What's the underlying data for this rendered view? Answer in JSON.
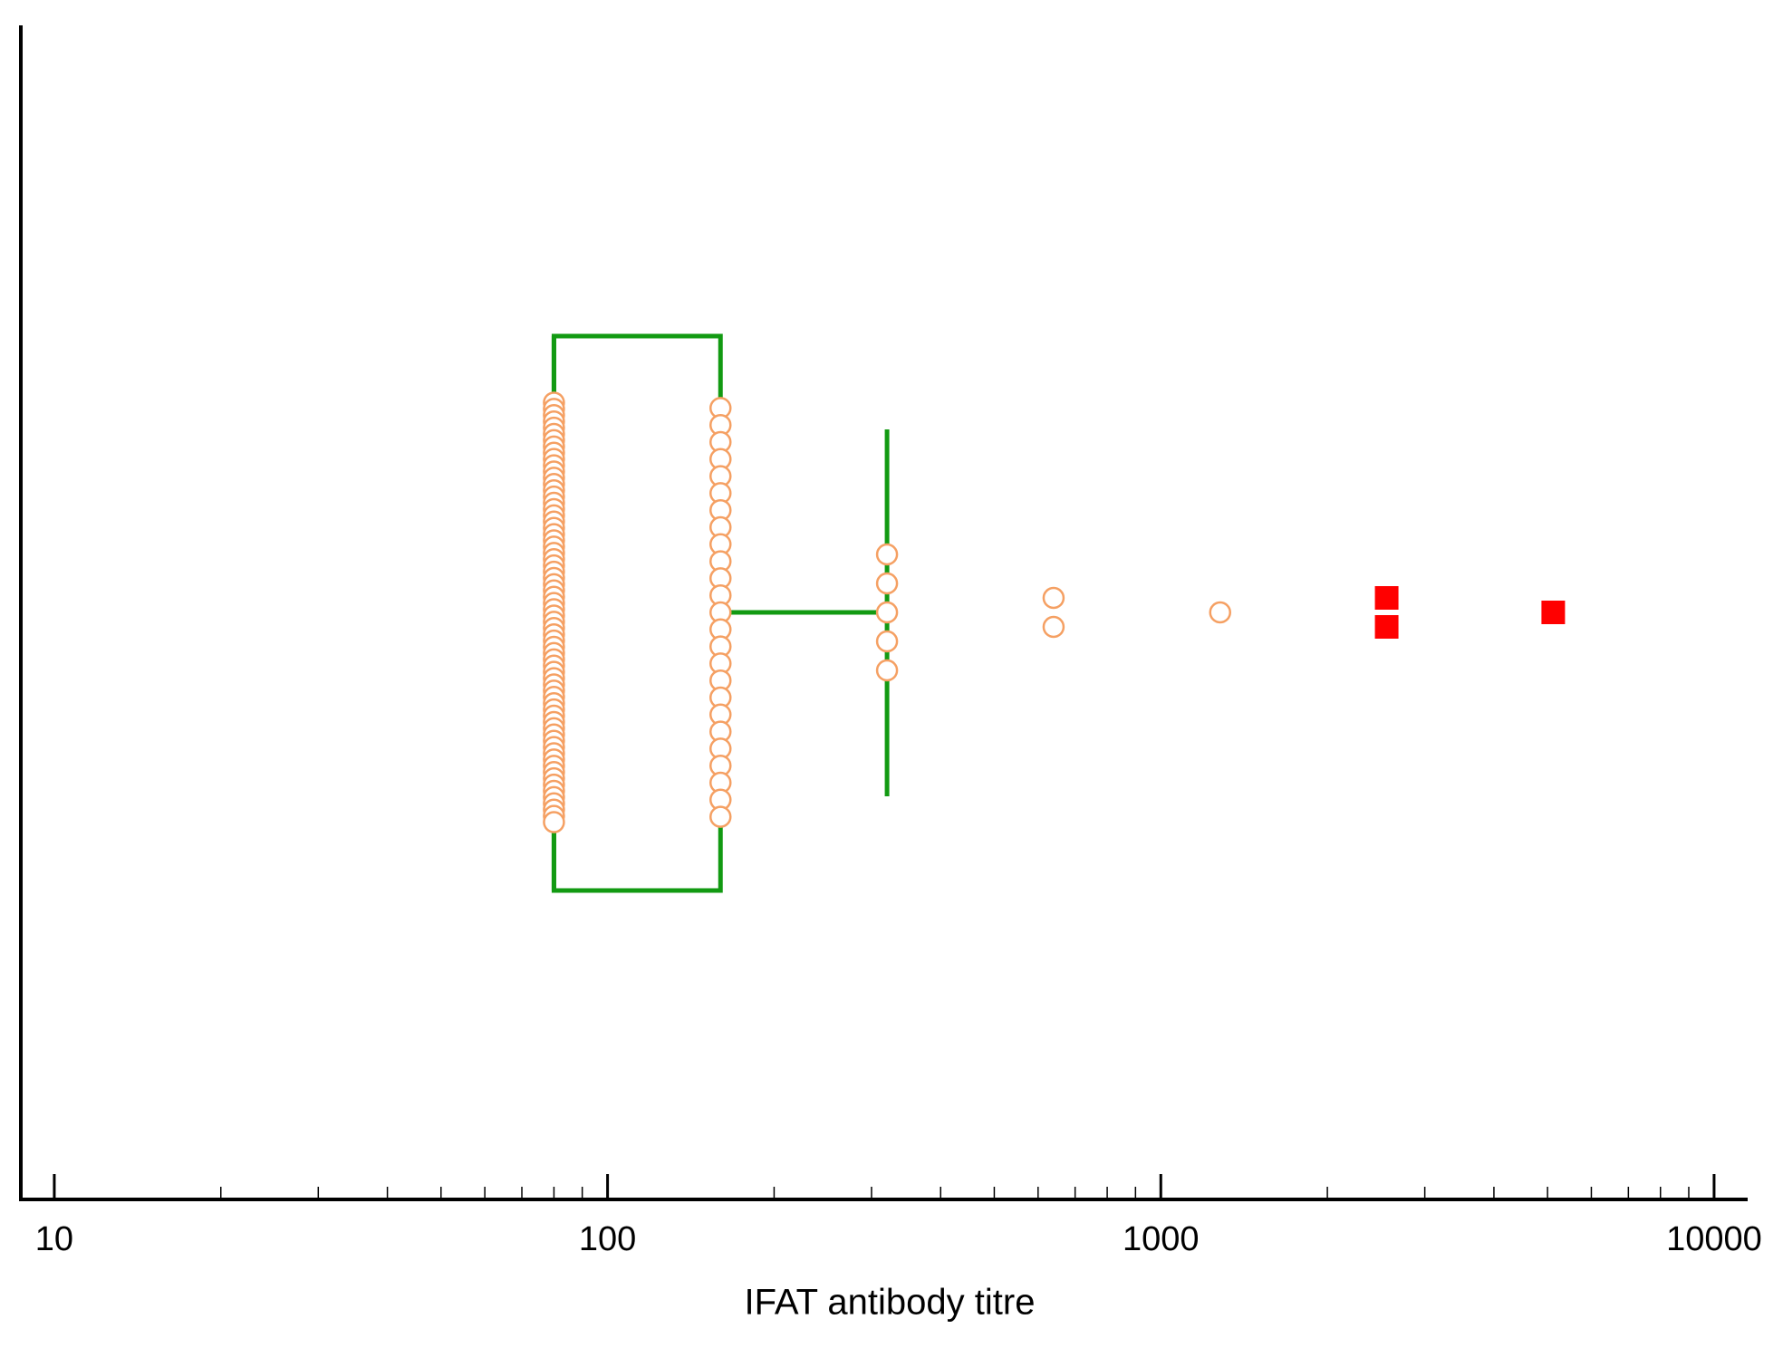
{
  "chart_data": {
    "type": "box",
    "x_label": "IFAT antibody titre",
    "x_scale": "log",
    "xlim": [
      8.7,
      11500
    ],
    "xticks": [
      10,
      100,
      1000,
      10000
    ],
    "xminorticks": [
      20,
      30,
      40,
      50,
      60,
      70,
      80,
      90,
      200,
      300,
      400,
      500,
      600,
      700,
      800,
      900,
      2000,
      3000,
      4000,
      5000,
      6000,
      7000,
      8000,
      9000
    ],
    "box": {
      "whisker_low": 80,
      "q1": 80,
      "median": 80,
      "q3": 160,
      "whisker_high": 320,
      "color": "#129a12"
    },
    "points": [
      {
        "value": 80,
        "count": 68
      },
      {
        "value": 160,
        "count": 25
      },
      {
        "value": 320,
        "count": 5
      },
      {
        "value": 640,
        "count": 2
      },
      {
        "value": 1280,
        "count": 1
      }
    ],
    "points_color": "#f5a063",
    "outliers": [
      {
        "value": 2560,
        "count": 2
      },
      {
        "value": 5120,
        "count": 1
      }
    ],
    "outliers_color": "#ff0000"
  }
}
